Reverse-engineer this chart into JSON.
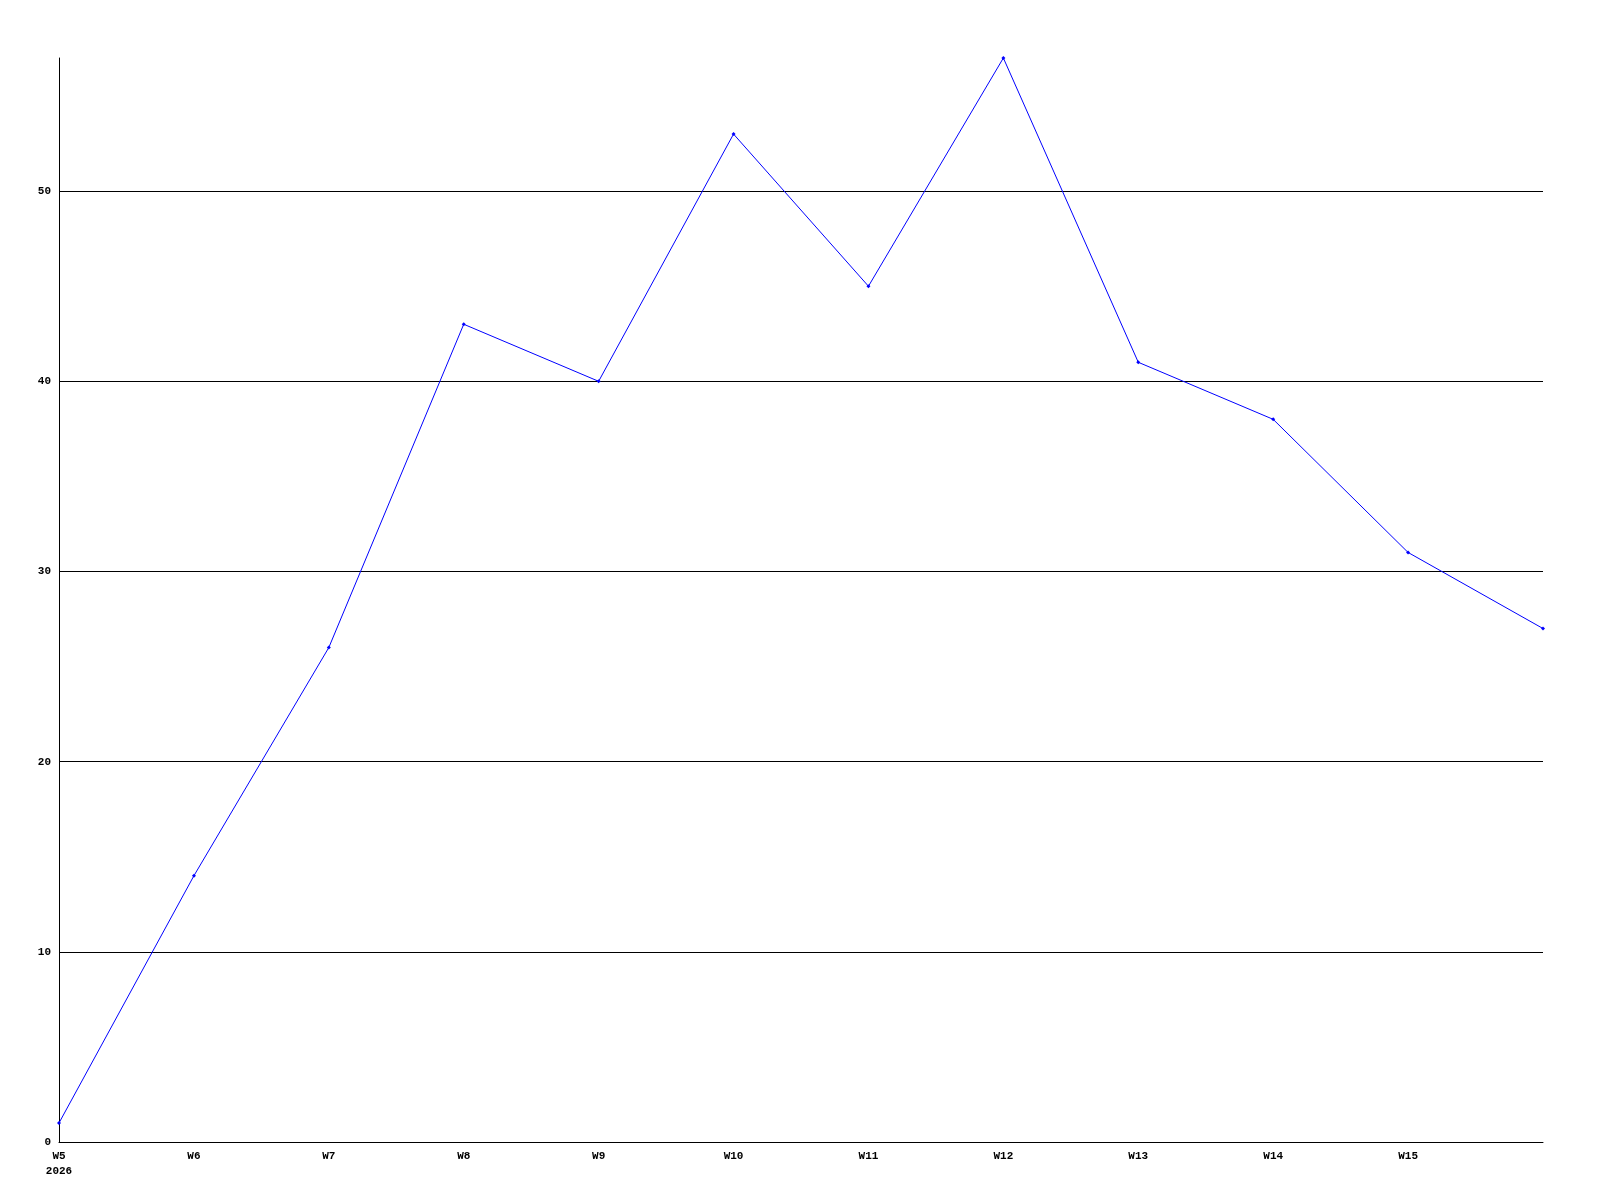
{
  "chart_data": {
    "type": "line",
    "categories": [
      "W5\n2026",
      "W6",
      "W7",
      "W8",
      "W9",
      "W10",
      "W11",
      "W12",
      "W13",
      "W14",
      "W15",
      null
    ],
    "series": [
      {
        "color": "#0000ff",
        "values": [
          1,
          14,
          26,
          43,
          40,
          53,
          45,
          57,
          41,
          38,
          31,
          27
        ]
      }
    ],
    "ylim": [
      0,
      57
    ],
    "yticks": [
      0,
      10,
      20,
      30,
      40,
      50
    ],
    "grid": "y",
    "marker": "diamond",
    "line_style": "solid"
  }
}
